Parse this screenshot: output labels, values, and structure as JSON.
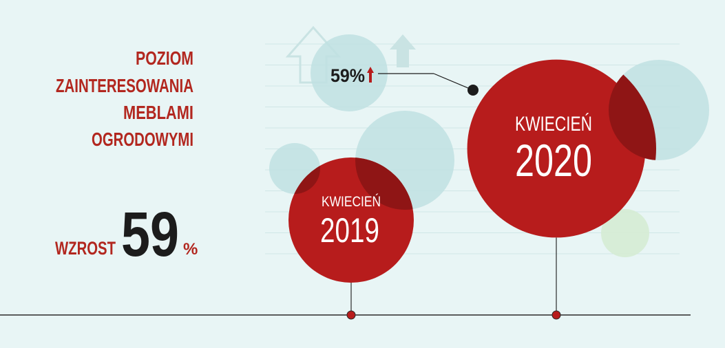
{
  "title_lines": [
    "POZIOM",
    "ZAINTERESOWANIA",
    "MEBLAMI",
    "OGRODOWYMI"
  ],
  "growth": {
    "prefix": "WZROST",
    "value": "59",
    "unit": "%"
  },
  "callout": {
    "label": "59%"
  },
  "colors": {
    "background": "#e8f5f5",
    "red": "#b71c1c",
    "dark_red": "#8f1515",
    "title_red": "#b2271f",
    "bubble_teal": "#bfe1e2",
    "bubble_green": "#d5ecd4",
    "text_dark": "#1c1c1c",
    "arrow_outline": "#c9e3e3"
  },
  "chart_data": {
    "type": "bubble",
    "title": "POZIOM ZAINTERESOWANIA MEBLAMI OGRODOWYMI",
    "x_unit": "date",
    "series": [
      {
        "categories": [
          "KWIECIEŃ 2019",
          "KWIECIEŃ 2020"
        ],
        "month_labels": [
          "KWIECIEŃ",
          "KWIECIEŃ"
        ],
        "year_labels": [
          "2019",
          "2020"
        ],
        "relative_interest": [
          1.0,
          1.59
        ]
      }
    ],
    "change_label": "59%",
    "change_percent": 59,
    "change_direction": "up"
  }
}
